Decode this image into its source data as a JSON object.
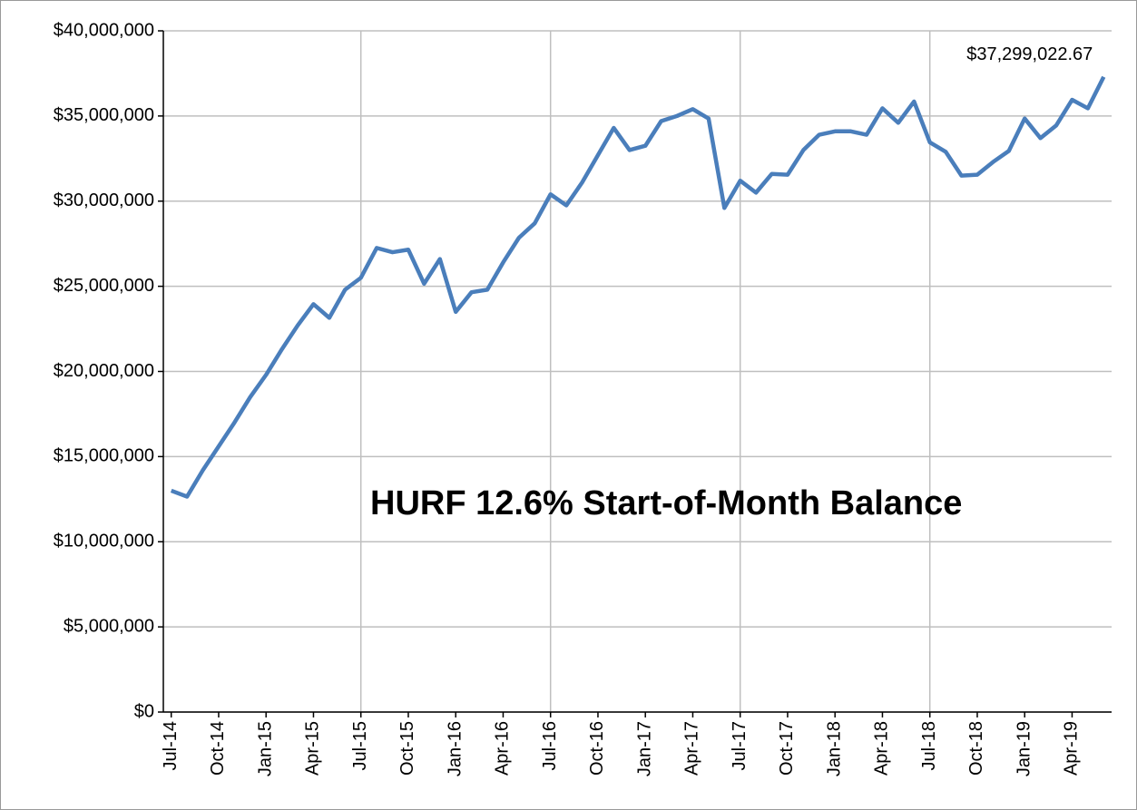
{
  "chart_data": {
    "type": "line",
    "title": "HURF 12.6% Start-of-Month Balance",
    "categories": [
      "Jul-14",
      null,
      null,
      "Oct-14",
      null,
      null,
      "Jan-15",
      null,
      null,
      "Apr-15",
      null,
      null,
      "Jul-15",
      null,
      null,
      "Oct-15",
      null,
      null,
      "Jan-16",
      null,
      null,
      "Apr-16",
      null,
      null,
      "Jul-16",
      null,
      null,
      "Oct-16",
      null,
      null,
      "Jan-17",
      null,
      null,
      "Apr-17",
      null,
      null,
      "Jul-17",
      null,
      null,
      "Oct-17",
      null,
      null,
      "Jan-18",
      null,
      null,
      "Apr-18",
      null,
      null,
      "Jul-18",
      null,
      null,
      "Oct-18",
      null,
      null,
      "Jan-19",
      null,
      null,
      "Apr-19",
      null,
      null
    ],
    "series": [
      {
        "color": "#4a7ebb",
        "values": [
          13000000,
          12650000,
          14200000,
          15600000,
          17000000,
          18500000,
          19800000,
          21300000,
          22700000,
          23950000,
          23150000,
          24800000,
          25500000,
          27250000,
          27000000,
          27150000,
          25150000,
          26600000,
          23500000,
          24650000,
          24800000,
          26400000,
          27850000,
          28700000,
          30400000,
          29750000,
          31100000,
          32700000,
          34300000,
          33000000,
          33250000,
          34700000,
          35000000,
          35400000,
          34850000,
          29600000,
          31200000,
          30500000,
          31600000,
          31550000,
          33000000,
          33900000,
          34100000,
          34100000,
          33900000,
          35450000,
          34600000,
          35850000,
          33450000,
          32900000,
          31500000,
          31550000,
          32300000,
          32950000,
          34850000,
          33700000,
          34450000,
          35950000,
          35450000,
          37299022.67
        ],
        "value_labels": [
          null,
          null,
          null,
          null,
          null,
          null,
          null,
          null,
          null,
          null,
          null,
          null,
          null,
          null,
          null,
          null,
          null,
          null,
          null,
          null,
          null,
          null,
          null,
          null,
          null,
          null,
          null,
          null,
          null,
          null,
          null,
          null,
          null,
          null,
          null,
          null,
          null,
          null,
          null,
          null,
          null,
          null,
          null,
          null,
          null,
          null,
          null,
          null,
          null,
          null,
          null,
          null,
          null,
          null,
          null,
          null,
          null,
          null,
          null,
          "$37,299,022.67"
        ]
      }
    ],
    "ylim": [
      0,
      40000000
    ],
    "yticks": [
      {
        "value": 0,
        "label": "$0"
      },
      {
        "value": 5000000,
        "label": "$5,000,000"
      },
      {
        "value": 10000000,
        "label": "$10,000,000"
      },
      {
        "value": 15000000,
        "label": "$15,000,000"
      },
      {
        "value": 20000000,
        "label": "$20,000,000"
      },
      {
        "value": 25000000,
        "label": "$25,000,000"
      },
      {
        "value": 30000000,
        "label": "$30,000,000"
      },
      {
        "value": 35000000,
        "label": "$35,000,000"
      },
      {
        "value": 40000000,
        "label": "$40,000,000"
      }
    ],
    "grid": true
  }
}
